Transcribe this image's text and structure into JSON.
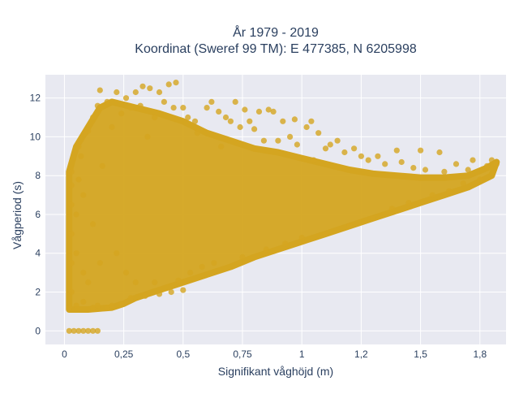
{
  "chart_data": {
    "type": "scatter",
    "title_lines": [
      "År 1979 - 2019",
      "Koordinat (Sweref 99 TM): E 477385, N 6205998"
    ],
    "xlabel": "Signifikant våghöjd (m)",
    "ylabel": "Vågperiod (s)",
    "xlim": [
      -0.08,
      1.86
    ],
    "ylim": [
      -0.7,
      13.2
    ],
    "x_ticks": [
      0,
      0.25,
      0.5,
      0.75,
      1,
      1.25,
      1.5,
      1.75
    ],
    "x_tick_labels": [
      "0",
      "0,25",
      "0,5",
      "0,75",
      "1",
      "1,2",
      "1,5",
      "1,8"
    ],
    "y_ticks": [
      0,
      2,
      4,
      6,
      8,
      10,
      12
    ],
    "y_tick_labels": [
      "0",
      "2",
      "4",
      "6",
      "8",
      "10",
      "12"
    ],
    "grid": true,
    "marker_color": "#d4a520",
    "plot_background": "#e8e9f1",
    "series": [
      {
        "points": [
          [
            0.02,
            0
          ],
          [
            0.04,
            0
          ],
          [
            0.06,
            0
          ],
          [
            0.08,
            0
          ],
          [
            0.1,
            0
          ],
          [
            0.12,
            0
          ],
          [
            0.14,
            0
          ],
          [
            0.02,
            1.2
          ],
          [
            0.03,
            2.0
          ],
          [
            0.03,
            3.5
          ],
          [
            0.03,
            5.0
          ],
          [
            0.03,
            6.5
          ],
          [
            0.03,
            7.5
          ],
          [
            0.03,
            8.2
          ],
          [
            0.05,
            1.3
          ],
          [
            0.05,
            4.0
          ],
          [
            0.05,
            6.0
          ],
          [
            0.06,
            7.8
          ],
          [
            0.06,
            9.5
          ],
          [
            0.07,
            9.0
          ],
          [
            0.08,
            1.5
          ],
          [
            0.08,
            3.0
          ],
          [
            0.08,
            7.0
          ],
          [
            0.09,
            10.2
          ],
          [
            0.1,
            10.3
          ],
          [
            0.1,
            2.5
          ],
          [
            0.12,
            1.2
          ],
          [
            0.12,
            5.5
          ],
          [
            0.12,
            11.0
          ],
          [
            0.14,
            1.3
          ],
          [
            0.14,
            11.6
          ],
          [
            0.15,
            12.4
          ],
          [
            0.15,
            3.5
          ],
          [
            0.16,
            8.5
          ],
          [
            0.18,
            1.2
          ],
          [
            0.18,
            11.8
          ],
          [
            0.2,
            1.3
          ],
          [
            0.2,
            10.5
          ],
          [
            0.22,
            12.3
          ],
          [
            0.22,
            4.0
          ],
          [
            0.24,
            1.4
          ],
          [
            0.24,
            11.2
          ],
          [
            0.26,
            12.0
          ],
          [
            0.26,
            3.0
          ],
          [
            0.28,
            11.5
          ],
          [
            0.28,
            1.7
          ],
          [
            0.3,
            12.3
          ],
          [
            0.3,
            2.5
          ],
          [
            0.32,
            11.6
          ],
          [
            0.33,
            12.6
          ],
          [
            0.34,
            1.8
          ],
          [
            0.35,
            10.0
          ],
          [
            0.36,
            12.5
          ],
          [
            0.38,
            11.0
          ],
          [
            0.38,
            2.5
          ],
          [
            0.4,
            12.3
          ],
          [
            0.4,
            1.9
          ],
          [
            0.42,
            11.8
          ],
          [
            0.44,
            12.7
          ],
          [
            0.45,
            2.0
          ],
          [
            0.46,
            11.5
          ],
          [
            0.47,
            12.8
          ],
          [
            0.48,
            2.6
          ],
          [
            0.5,
            11.5
          ],
          [
            0.5,
            2.1
          ],
          [
            0.52,
            11.0
          ],
          [
            0.53,
            3.0
          ],
          [
            0.55,
            10.8
          ],
          [
            0.56,
            10.2
          ],
          [
            0.58,
            3.3
          ],
          [
            0.6,
            11.5
          ],
          [
            0.62,
            11.8
          ],
          [
            0.63,
            3.5
          ],
          [
            0.65,
            11.3
          ],
          [
            0.66,
            9.5
          ],
          [
            0.68,
            11.0
          ],
          [
            0.7,
            10.8
          ],
          [
            0.72,
            11.8
          ],
          [
            0.74,
            10.5
          ],
          [
            0.75,
            3.8
          ],
          [
            0.76,
            11.4
          ],
          [
            0.78,
            10.8
          ],
          [
            0.8,
            10.4
          ],
          [
            0.82,
            11.3
          ],
          [
            0.84,
            9.8
          ],
          [
            0.85,
            4.2
          ],
          [
            0.86,
            11.4
          ],
          [
            0.88,
            11.3
          ],
          [
            0.9,
            9.8
          ],
          [
            0.92,
            10.8
          ],
          [
            0.93,
            4.5
          ],
          [
            0.95,
            10.0
          ],
          [
            0.97,
            10.9
          ],
          [
            0.98,
            9.6
          ],
          [
            1.0,
            4.8
          ],
          [
            1.02,
            10.5
          ],
          [
            1.04,
            10.8
          ],
          [
            1.05,
            8.8
          ],
          [
            1.07,
            10.2
          ],
          [
            1.1,
            9.4
          ],
          [
            1.1,
            5.0
          ],
          [
            1.12,
            9.6
          ],
          [
            1.15,
            9.8
          ],
          [
            1.18,
            9.2
          ],
          [
            1.2,
            5.4
          ],
          [
            1.22,
            9.4
          ],
          [
            1.25,
            9.0
          ],
          [
            1.28,
            8.8
          ],
          [
            1.3,
            5.8
          ],
          [
            1.32,
            9.0
          ],
          [
            1.35,
            8.6
          ],
          [
            1.38,
            6.3
          ],
          [
            1.4,
            9.3
          ],
          [
            1.42,
            8.7
          ],
          [
            1.45,
            6.6
          ],
          [
            1.47,
            8.4
          ],
          [
            1.5,
            9.3
          ],
          [
            1.52,
            8.3
          ],
          [
            1.55,
            7.0
          ],
          [
            1.58,
            9.2
          ],
          [
            1.6,
            8.2
          ],
          [
            1.62,
            7.2
          ],
          [
            1.65,
            8.6
          ],
          [
            1.68,
            7.6
          ],
          [
            1.7,
            8.3
          ],
          [
            1.72,
            8.8
          ],
          [
            1.75,
            7.8
          ],
          [
            1.78,
            8.5
          ],
          [
            1.8,
            8.8
          ],
          [
            1.82,
            8.6
          ]
        ]
      }
    ],
    "density_band": {
      "upper": [
        [
          0.02,
          8.2
        ],
        [
          0.05,
          9.5
        ],
        [
          0.1,
          10.5
        ],
        [
          0.15,
          11.5
        ],
        [
          0.2,
          11.8
        ],
        [
          0.3,
          11.5
        ],
        [
          0.4,
          11.2
        ],
        [
          0.5,
          10.8
        ],
        [
          0.6,
          10.2
        ],
        [
          0.7,
          9.8
        ],
        [
          0.8,
          9.4
        ],
        [
          0.9,
          9.2
        ],
        [
          1.0,
          8.9
        ],
        [
          1.1,
          8.6
        ],
        [
          1.2,
          8.3
        ],
        [
          1.3,
          8.1
        ],
        [
          1.4,
          8.0
        ],
        [
          1.5,
          7.9
        ],
        [
          1.6,
          7.9
        ],
        [
          1.7,
          8.0
        ],
        [
          1.78,
          8.4
        ],
        [
          1.82,
          8.7
        ]
      ],
      "lower": [
        [
          0.02,
          1.1
        ],
        [
          0.1,
          1.1
        ],
        [
          0.15,
          1.15
        ],
        [
          0.2,
          1.2
        ],
        [
          0.25,
          1.4
        ],
        [
          0.3,
          1.7
        ],
        [
          0.4,
          2.1
        ],
        [
          0.5,
          2.5
        ],
        [
          0.6,
          2.9
        ],
        [
          0.7,
          3.3
        ],
        [
          0.8,
          3.8
        ],
        [
          0.9,
          4.2
        ],
        [
          1.0,
          4.6
        ],
        [
          1.1,
          5.0
        ],
        [
          1.2,
          5.4
        ],
        [
          1.3,
          5.8
        ],
        [
          1.4,
          6.2
        ],
        [
          1.5,
          6.6
        ],
        [
          1.6,
          7.0
        ],
        [
          1.7,
          7.4
        ],
        [
          1.8,
          8.0
        ],
        [
          1.82,
          8.7
        ]
      ]
    }
  }
}
